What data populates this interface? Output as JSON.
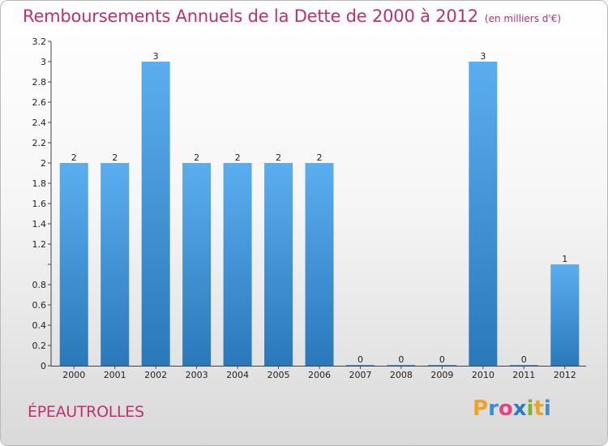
{
  "header": {
    "title": "Remboursements Annuels de la Dette de 2000 à 2012",
    "unit": "(en milliers d'€)"
  },
  "footer": {
    "commune": "ÉPEAUTROLLES",
    "logo_letters": [
      "P",
      "r",
      "o",
      "x",
      "i",
      "t",
      "i"
    ],
    "logo_colors": [
      "#f0a320",
      "#3a8fd4",
      "#e3447c",
      "#2e7bc4",
      "#7ab22e",
      "#f0a320",
      "#3a8fd4"
    ]
  },
  "chart_data": {
    "type": "bar",
    "title": "Remboursements Annuels de la Dette de 2000 à 2012",
    "xlabel": "",
    "ylabel": "",
    "categories": [
      "2000",
      "2001",
      "2002",
      "2003",
      "2004",
      "2005",
      "2006",
      "2007",
      "2008",
      "2009",
      "2010",
      "2011",
      "2012"
    ],
    "values": [
      2,
      2,
      3,
      2,
      2,
      2,
      2,
      0,
      0,
      0,
      3,
      0,
      1
    ],
    "value_labels": [
      "2",
      "2",
      "3",
      "2",
      "2",
      "2",
      "2",
      "0",
      "0",
      "0",
      "3",
      "0",
      "1"
    ],
    "ylim": [
      0,
      3.2
    ],
    "y_ticks": [
      0,
      0.2,
      0.4,
      0.6,
      0.8,
      1,
      1.2,
      1.4,
      1.6,
      1.8,
      2,
      2.2,
      2.4,
      2.6,
      2.8,
      3,
      3.2
    ],
    "y_tick_labels": [
      "0",
      "0.2",
      "0.4",
      "0.6",
      "0.8",
      "",
      "1.2",
      "1.4",
      "1.6",
      "1.8",
      "2",
      "2.2",
      "2.4",
      "2.6",
      "2.8",
      "3",
      "3.2"
    ],
    "grid": false,
    "legend": "none",
    "bar_color_light": "#5aaef0",
    "bar_color_dark": "#2a78ba"
  }
}
